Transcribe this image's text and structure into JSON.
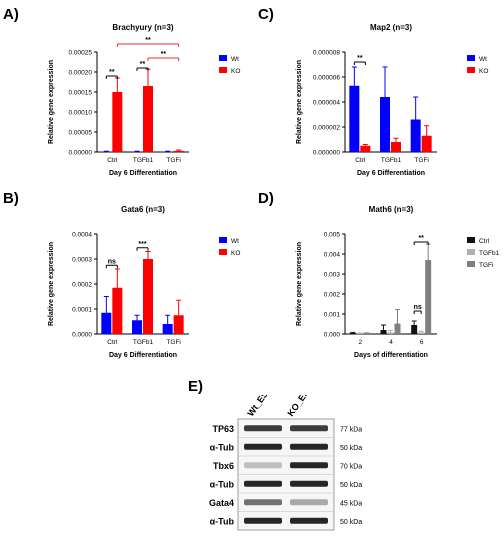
{
  "panels": {
    "A": "A)",
    "B": "B)",
    "C": "C)",
    "D": "D)",
    "E": "E)"
  },
  "chart_data": [
    {
      "id": "A",
      "type": "bar",
      "title": "Brachyury (n=3)",
      "xlabel": "Day 6 Differentiation",
      "ylabel": "Relative gene expression",
      "categories": [
        "Ctrl",
        "TGFb1",
        "TGFi"
      ],
      "ylim": [
        0,
        0.00025
      ],
      "yticks": [
        "0.00000",
        "0.00005",
        "0.00010",
        "0.00015",
        "0.00020",
        "0.00025"
      ],
      "series": [
        {
          "name": "Wt",
          "color": "#0000ff",
          "values": [
            1e-06,
            1e-06,
            1e-06
          ],
          "errors": [
            1e-06,
            1e-06,
            1e-06
          ]
        },
        {
          "name": "KO",
          "color": "#ff0000",
          "values": [
            0.00015,
            0.000165,
            3e-06
          ],
          "errors": [
            3.5e-05,
            4.2e-05,
            2e-06
          ]
        }
      ],
      "legend": "right",
      "annotations": [
        {
          "text": "**",
          "from": [
            0,
            0
          ],
          "to": [
            0,
            1
          ],
          "y": 0.00019,
          "color": "#000000"
        },
        {
          "text": "**",
          "from": [
            1,
            0
          ],
          "to": [
            1,
            1
          ],
          "y": 0.00021,
          "color": "#000000"
        },
        {
          "text": "**",
          "from": [
            0,
            1
          ],
          "to": [
            2,
            1
          ],
          "y": 0.00027,
          "color": "#e03030"
        },
        {
          "text": "**",
          "from": [
            1,
            1
          ],
          "to": [
            2,
            1
          ],
          "y": 0.000235,
          "color": "#e03030"
        }
      ]
    },
    {
      "id": "B",
      "type": "bar",
      "title": "Gata6 (n=3)",
      "xlabel": "Day 6 Differentiation",
      "ylabel": "Relative gene expression",
      "categories": [
        "Ctrl",
        "TGFb1",
        "TGFi"
      ],
      "ylim": [
        0,
        0.0004
      ],
      "yticks": [
        "0.0000",
        "0.0001",
        "0.0002",
        "0.0003",
        "0.0004"
      ],
      "series": [
        {
          "name": "Wt",
          "color": "#0000ff",
          "values": [
            8.5e-05,
            5.5e-05,
            4e-05
          ],
          "errors": [
            6.5e-05,
            2e-05,
            3.5e-05
          ]
        },
        {
          "name": "KO",
          "color": "#ff0000",
          "values": [
            0.000185,
            0.0003,
            7.5e-05
          ],
          "errors": [
            7.5e-05,
            3e-05,
            6e-05
          ]
        }
      ],
      "legend": "right",
      "annotations": [
        {
          "text": "ns",
          "from": [
            0,
            0
          ],
          "to": [
            0,
            1
          ],
          "y": 0.000275,
          "color": "#000000"
        },
        {
          "text": "***",
          "from": [
            1,
            0
          ],
          "to": [
            1,
            1
          ],
          "y": 0.000345,
          "color": "#000000"
        }
      ]
    },
    {
      "id": "C",
      "type": "bar",
      "title": "Map2 (n=3)",
      "xlabel": "Day 6 Differentiation",
      "ylabel": "Relative gene expression",
      "categories": [
        "Ctrl",
        "TGFb1",
        "TGFi"
      ],
      "ylim": [
        0,
        8e-06
      ],
      "yticks": [
        "0.000000",
        "0.000002",
        "0.000004",
        "0.000006",
        "0.000008"
      ],
      "series": [
        {
          "name": "Wt",
          "color": "#0000ff",
          "values": [
            5.3e-06,
            4.4e-06,
            2.6e-06
          ],
          "errors": [
            1.5e-06,
            2.4e-06,
            1.8e-06
          ]
        },
        {
          "name": "KO",
          "color": "#ff0000",
          "values": [
            5e-07,
            8e-07,
            1.3e-06
          ],
          "errors": [
            1e-07,
            3e-07,
            8e-07
          ]
        }
      ],
      "legend": "right",
      "annotations": [
        {
          "text": "**",
          "from": [
            0,
            0
          ],
          "to": [
            0,
            1
          ],
          "y": 7.2e-06,
          "color": "#000000"
        }
      ]
    },
    {
      "id": "D",
      "type": "bar",
      "title": "Math6 (n=3)",
      "xlabel": "Days of differentiation",
      "ylabel": "Relative gene expression",
      "categories": [
        "2",
        "4",
        "6"
      ],
      "ylim": [
        0,
        0.005
      ],
      "yticks": [
        "0.000",
        "0.001",
        "0.002",
        "0.003",
        "0.004",
        "0.005"
      ],
      "series": [
        {
          "name": "Ctrl",
          "color": "#111111",
          "values": [
            5e-05,
            0.0002,
            0.00045
          ],
          "errors": [
            3e-05,
            0.00025,
            0.0002
          ]
        },
        {
          "name": "TGFb1",
          "color": "#b0b0b0",
          "values": [
            3e-05,
            8e-05,
            8e-05
          ],
          "errors": [
            2e-05,
            0.0001,
            6e-05
          ]
        },
        {
          "name": "TGFi",
          "color": "#808080",
          "values": [
            4e-05,
            0.00052,
            0.0037
          ],
          "errors": [
            2e-05,
            0.0007,
            0.0008
          ]
        }
      ],
      "legend": "right",
      "annotations": [
        {
          "text": "ns",
          "from": [
            2,
            0
          ],
          "to": [
            2,
            1
          ],
          "y": 0.00115,
          "color": "#000000"
        },
        {
          "text": "**",
          "from": [
            2,
            0
          ],
          "to": [
            2,
            2
          ],
          "y": 0.0046,
          "color": "#000000"
        }
      ]
    }
  ],
  "western": {
    "columns": [
      "Wt_ESC",
      "KO_ESC"
    ],
    "rows": [
      {
        "label": "TP63",
        "kda": "77 kDa"
      },
      {
        "label": "α-Tub",
        "kda": "50 kDa"
      },
      {
        "label": "Tbx6",
        "kda": "70 kDa"
      },
      {
        "label": "α-Tub",
        "kda": "50 kDa"
      },
      {
        "label": "Gata4",
        "kda": "45 kDa"
      },
      {
        "label": "α-Tub",
        "kda": "50 kDa"
      }
    ]
  }
}
